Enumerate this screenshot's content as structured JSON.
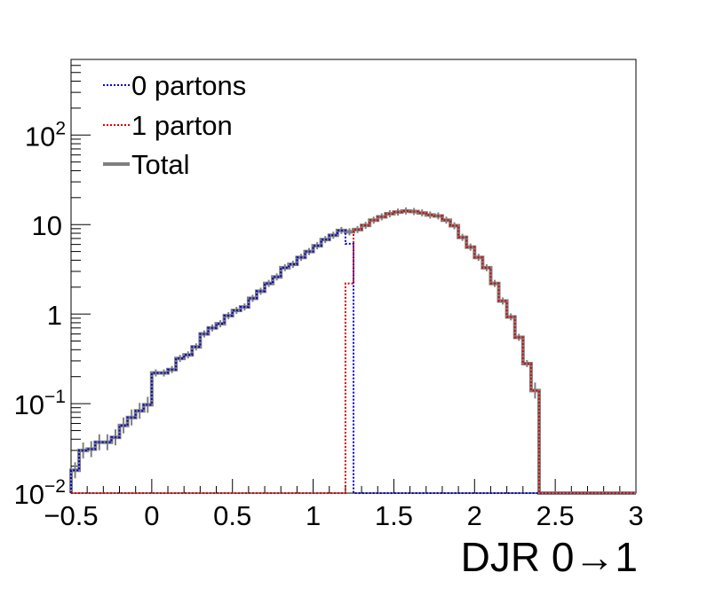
{
  "colors": {
    "zero_partons": "#0000cc",
    "one_parton": "#dd0000",
    "total": "#808080",
    "axes": "#000000",
    "background": "#ffffff"
  },
  "chart_data": {
    "type": "histogram",
    "xlabel": "DJR 0→1",
    "ylabel": "",
    "xlim": [
      -0.5,
      3.0
    ],
    "ylim": [
      0.01,
      700
    ],
    "log_y": true,
    "grid": false,
    "legend_placement": "top-left",
    "x_tick_labels": [
      "−0.5",
      "0",
      "0.5",
      "1",
      "1.5",
      "2",
      "2.5",
      "3"
    ],
    "y_tick_labels": [
      {
        "value": 0.01,
        "base": "10",
        "exp": "−2"
      },
      {
        "value": 0.1,
        "base": "10",
        "exp": "−1"
      },
      {
        "value": 1,
        "base": "1",
        "exp": ""
      },
      {
        "value": 10,
        "base": "10",
        "exp": ""
      },
      {
        "value": 100,
        "base": "10",
        "exp": "2"
      }
    ],
    "bin_edges": [
      -0.5,
      -0.45,
      -0.4,
      -0.35,
      -0.3,
      -0.25,
      -0.2,
      -0.15,
      -0.1,
      -0.05,
      0.0,
      0.05,
      0.1,
      0.15,
      0.2,
      0.25,
      0.3,
      0.35,
      0.4,
      0.45,
      0.5,
      0.55,
      0.6,
      0.65,
      0.7,
      0.75,
      0.8,
      0.85,
      0.9,
      0.95,
      1.0,
      1.05,
      1.1,
      1.15,
      1.2,
      1.25,
      1.3,
      1.35,
      1.4,
      1.45,
      1.5,
      1.55,
      1.6,
      1.65,
      1.7,
      1.75,
      1.8,
      1.85,
      1.9,
      1.95,
      2.0,
      2.05,
      2.1,
      2.15,
      2.2,
      2.25,
      2.3,
      2.35,
      2.4,
      2.45,
      2.5,
      2.55,
      2.6,
      2.65,
      2.7,
      2.75,
      2.8,
      2.85,
      2.9,
      2.95,
      3.0
    ],
    "series": [
      {
        "name": "0 partons",
        "style": "dotted",
        "values": [
          0.018,
          0.03,
          0.031,
          0.037,
          0.037,
          0.042,
          0.057,
          0.07,
          0.083,
          0.097,
          0.22,
          0.22,
          0.24,
          0.32,
          0.35,
          0.43,
          0.6,
          0.7,
          0.78,
          0.96,
          1.1,
          1.2,
          1.5,
          1.8,
          2.2,
          2.6,
          3.3,
          3.6,
          4.3,
          5.0,
          5.8,
          6.8,
          7.6,
          8.6,
          6.1,
          0.0,
          0.0,
          0.0,
          0.0,
          0.0,
          0.0,
          0.0,
          0.0,
          0.0,
          0.0,
          0.0,
          0.0,
          0.0,
          0.0,
          0.0,
          0.0,
          0.0,
          0.0,
          0.0,
          0.0,
          0.0,
          0.0,
          0.0,
          0.0,
          0.0,
          0.0,
          0.0,
          0.0,
          0.0,
          0.0,
          0.0,
          0.0,
          0.0,
          0.0,
          0.0
        ]
      },
      {
        "name": "1 parton",
        "style": "dotted",
        "values": [
          0.0,
          0.0,
          0.0,
          0.0,
          0.0,
          0.0,
          0.0,
          0.0,
          0.0,
          0.0,
          0.0,
          0.0,
          0.0,
          0.0,
          0.0,
          0.0,
          0.0,
          0.0,
          0.0,
          0.0,
          0.0,
          0.0,
          0.0,
          0.0,
          0.0,
          0.0,
          0.0,
          0.0,
          0.0,
          0.0,
          0.0,
          0.0,
          0.0,
          0.0,
          2.2,
          8.8,
          9.8,
          11.2,
          12.2,
          13.2,
          13.8,
          14.2,
          14.0,
          13.5,
          12.8,
          12.5,
          11.2,
          9.7,
          7.2,
          5.6,
          4.3,
          3.3,
          2.2,
          1.4,
          0.93,
          0.55,
          0.28,
          0.14,
          0.0,
          0.0,
          0.0,
          0.0,
          0.0,
          0.0,
          0.0,
          0.0,
          0.0,
          0.0,
          0.0,
          0.0
        ]
      },
      {
        "name": "Total",
        "style": "solid",
        "values": [
          0.018,
          0.03,
          0.031,
          0.037,
          0.037,
          0.042,
          0.057,
          0.07,
          0.083,
          0.097,
          0.22,
          0.22,
          0.24,
          0.32,
          0.35,
          0.43,
          0.6,
          0.7,
          0.78,
          0.96,
          1.1,
          1.2,
          1.5,
          1.8,
          2.2,
          2.6,
          3.3,
          3.6,
          4.3,
          5.0,
          5.8,
          6.8,
          7.6,
          8.6,
          8.3,
          8.8,
          9.8,
          11.2,
          12.2,
          13.2,
          13.8,
          14.2,
          14.0,
          13.5,
          12.8,
          12.5,
          11.2,
          9.7,
          7.2,
          5.6,
          4.3,
          3.3,
          2.2,
          1.4,
          0.93,
          0.55,
          0.28,
          0.14,
          0.0,
          0.0,
          0.0,
          0.0,
          0.0,
          0.0,
          0.0,
          0.0,
          0.0,
          0.0,
          0.0,
          0.0
        ]
      }
    ]
  },
  "legend": {
    "entries": [
      {
        "label": "0 partons"
      },
      {
        "label": "1 parton"
      },
      {
        "label": "Total"
      }
    ]
  }
}
